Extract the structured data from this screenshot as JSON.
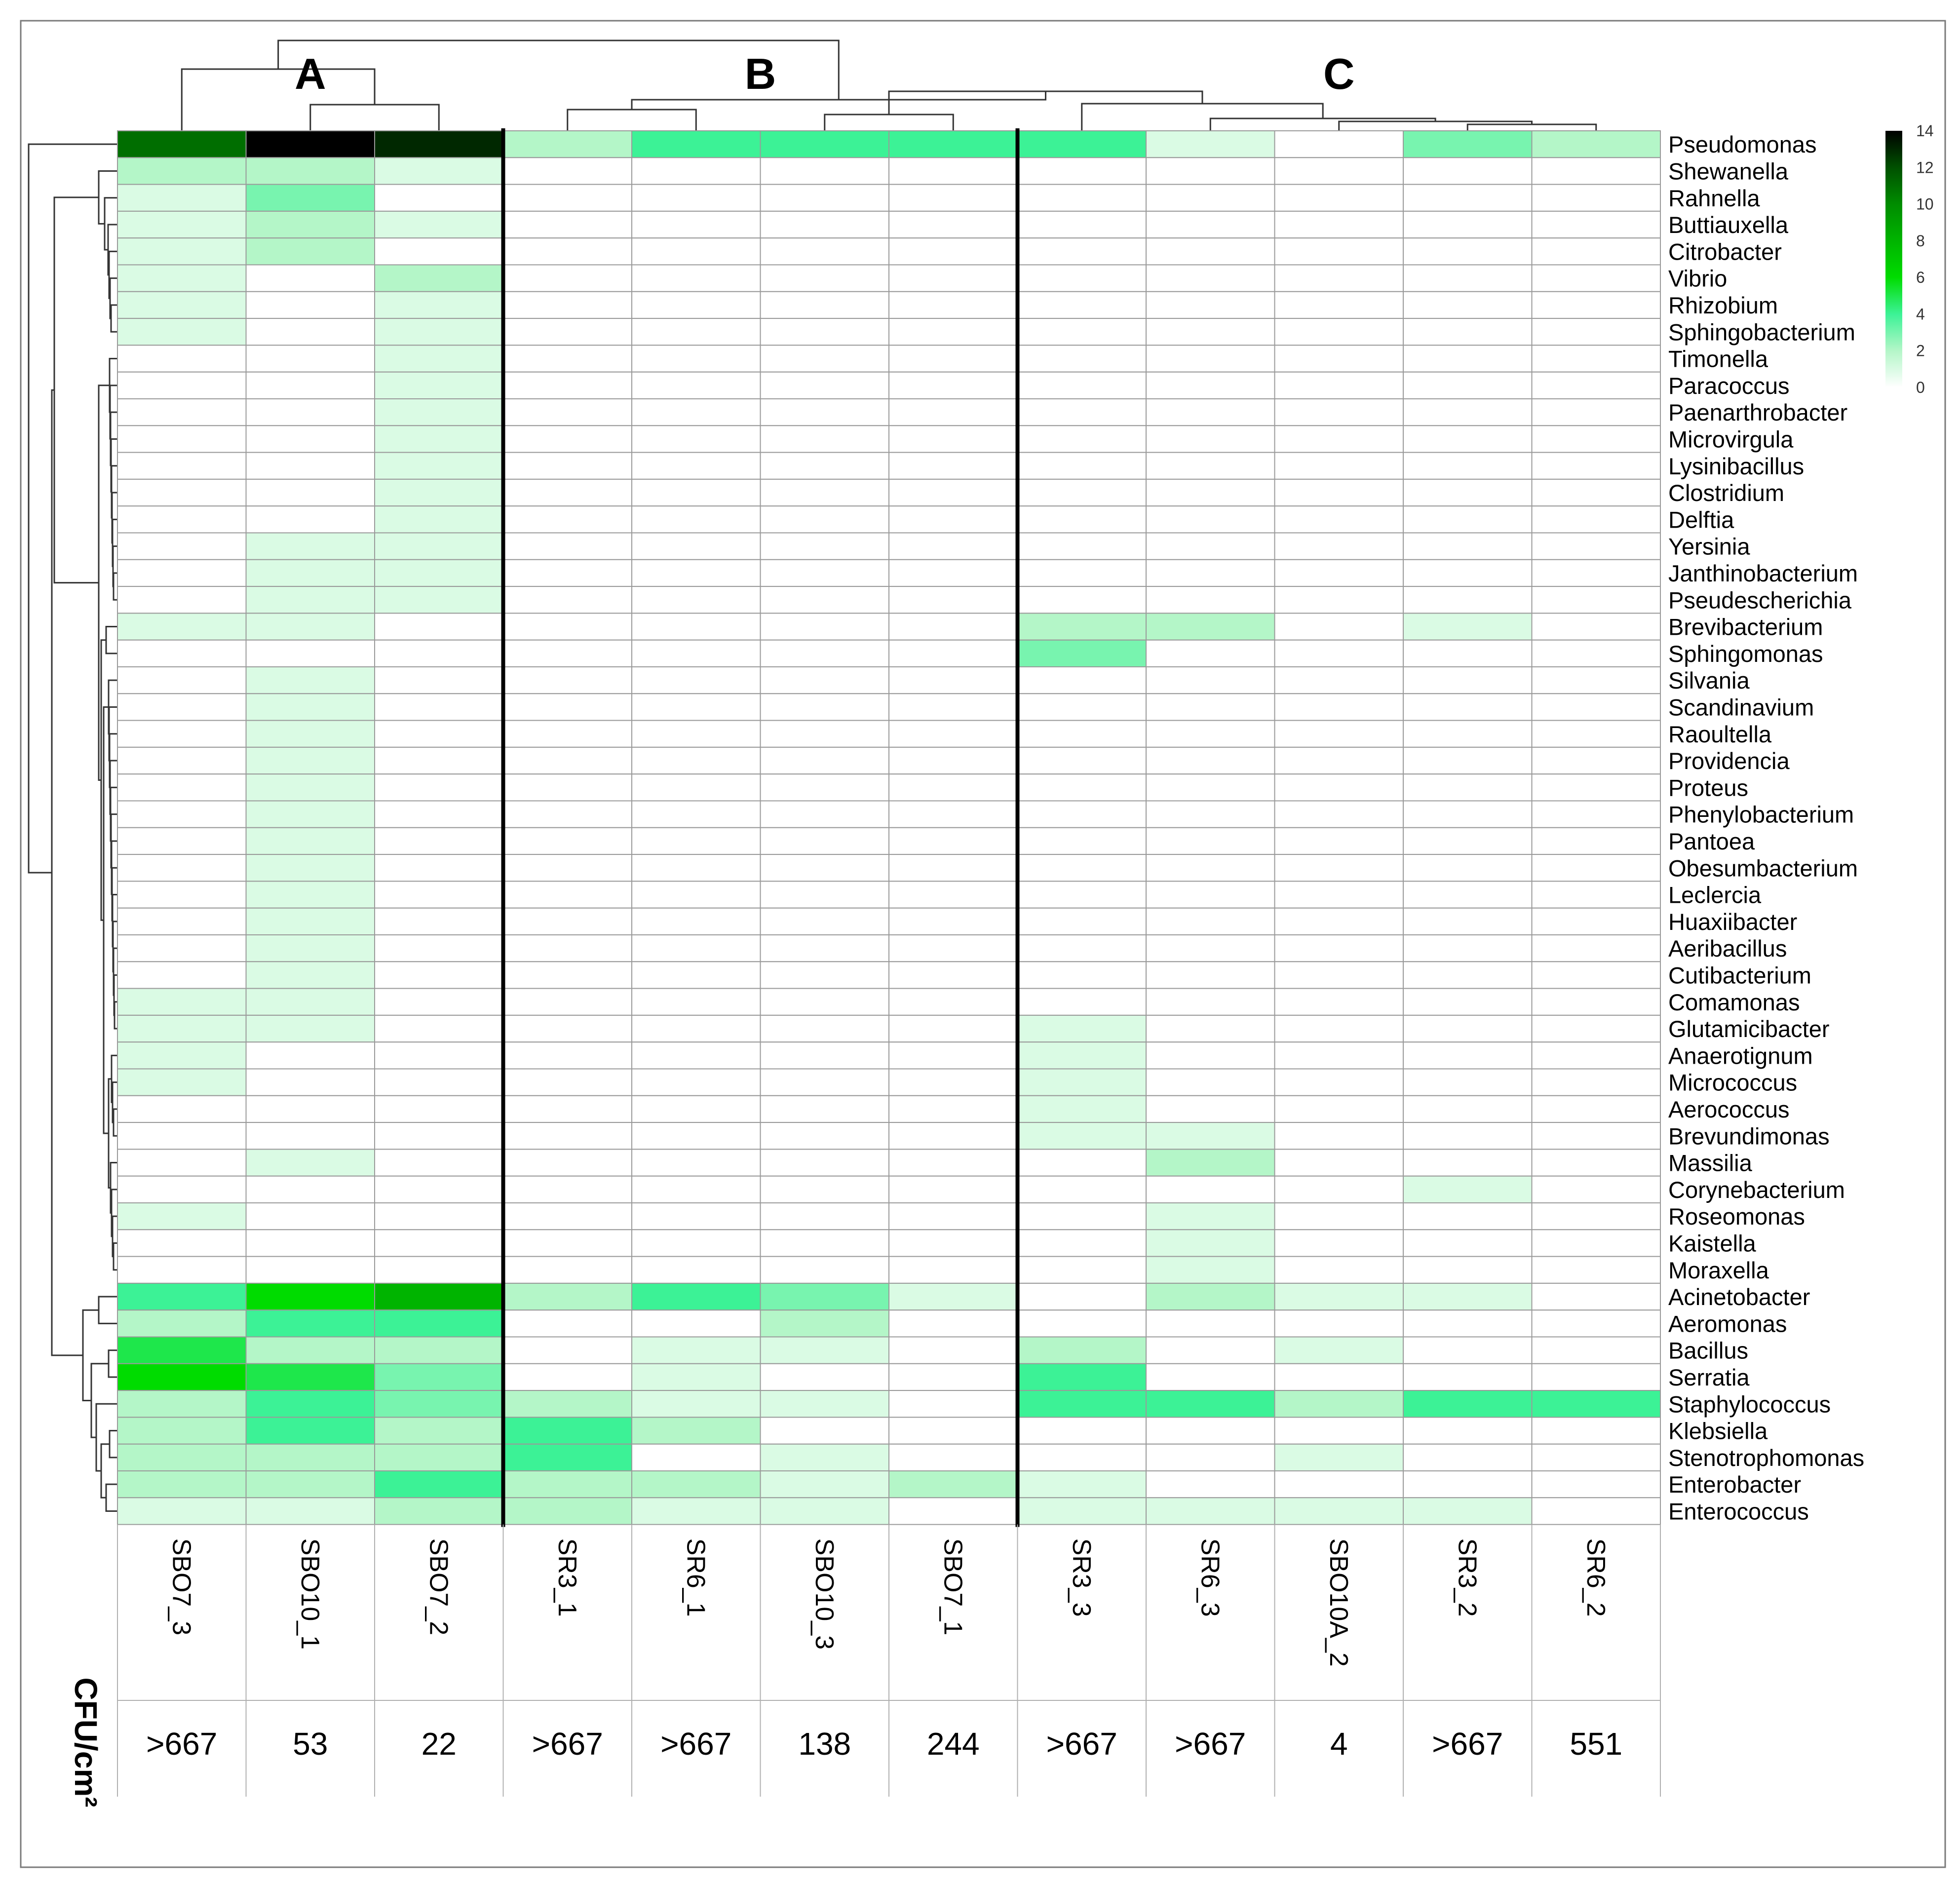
{
  "chart_data": {
    "type": "heatmap",
    "title": "",
    "xlabel": "",
    "ylabel": "",
    "clusters": [
      "A",
      "B",
      "C"
    ],
    "cluster_sizes": [
      3,
      4,
      5
    ],
    "columns": [
      "SBO7_3",
      "SBO10_1",
      "SBO7_2",
      "SR3_1",
      "SR6_1",
      "SBO10_3",
      "SBO7_1",
      "SR3_3",
      "SR6_3",
      "SBO10A_2",
      "SR3_2",
      "SR6_2"
    ],
    "cfu_label": "CFU/cm²",
    "cfu_values": [
      ">667",
      "53",
      "22",
      ">667",
      ">667",
      "138",
      "244",
      ">667",
      ">667",
      "4",
      ">667",
      "551"
    ],
    "rows": [
      "Pseudomonas",
      "Shewanella",
      "Rahnella",
      "Buttiauxella",
      "Citrobacter",
      "Vibrio",
      "Rhizobium",
      "Sphingobacterium",
      "Timonella",
      "Paracoccus",
      "Paenarthrobacter",
      "Microvirgula",
      "Lysinibacillus",
      "Clostridium",
      "Delftia",
      "Yersinia",
      "Janthinobacterium",
      "Pseudescherichia",
      "Brevibacterium",
      "Sphingomonas",
      "Silvania",
      "Scandinavium",
      "Raoultella",
      "Providencia",
      "Proteus",
      "Phenylobacterium",
      "Pantoea",
      "Obesumbacterium",
      "Leclercia",
      "Huaxiibacter",
      "Aeribacillus",
      "Cutibacterium",
      "Comamonas",
      "Glutamicibacter",
      "Anaerotignum",
      "Micrococcus",
      "Aerococcus",
      "Brevundimonas",
      "Massilia",
      "Corynebacterium",
      "Roseomonas",
      "Kaistella",
      "Moraxella",
      "Acinetobacter",
      "Aeromonas",
      "Bacillus",
      "Serratia",
      "Staphylococcus",
      "Klebsiella",
      "Stenotrophomonas",
      "Enterobacter",
      "Enterococcus"
    ],
    "values": [
      [
        11,
        14,
        13,
        2,
        4,
        4,
        4,
        4,
        1,
        0,
        3,
        2
      ],
      [
        2,
        2,
        1,
        0,
        0,
        0,
        0,
        0,
        0,
        0,
        0,
        0
      ],
      [
        1,
        3,
        0,
        0,
        0,
        0,
        0,
        0,
        0,
        0,
        0,
        0
      ],
      [
        1,
        2,
        1,
        0,
        0,
        0,
        0,
        0,
        0,
        0,
        0,
        0
      ],
      [
        1,
        2,
        0,
        0,
        0,
        0,
        0,
        0,
        0,
        0,
        0,
        0
      ],
      [
        1,
        0,
        2,
        0,
        0,
        0,
        0,
        0,
        0,
        0,
        0,
        0
      ],
      [
        1,
        0,
        1,
        0,
        0,
        0,
        0,
        0,
        0,
        0,
        0,
        0
      ],
      [
        1,
        0,
        1,
        0,
        0,
        0,
        0,
        0,
        0,
        0,
        0,
        0
      ],
      [
        0,
        0,
        1,
        0,
        0,
        0,
        0,
        0,
        0,
        0,
        0,
        0
      ],
      [
        0,
        0,
        1,
        0,
        0,
        0,
        0,
        0,
        0,
        0,
        0,
        0
      ],
      [
        0,
        0,
        1,
        0,
        0,
        0,
        0,
        0,
        0,
        0,
        0,
        0
      ],
      [
        0,
        0,
        1,
        0,
        0,
        0,
        0,
        0,
        0,
        0,
        0,
        0
      ],
      [
        0,
        0,
        1,
        0,
        0,
        0,
        0,
        0,
        0,
        0,
        0,
        0
      ],
      [
        0,
        0,
        1,
        0,
        0,
        0,
        0,
        0,
        0,
        0,
        0,
        0
      ],
      [
        0,
        0,
        1,
        0,
        0,
        0,
        0,
        0,
        0,
        0,
        0,
        0
      ],
      [
        0,
        1,
        1,
        0,
        0,
        0,
        0,
        0,
        0,
        0,
        0,
        0
      ],
      [
        0,
        1,
        1,
        0,
        0,
        0,
        0,
        0,
        0,
        0,
        0,
        0
      ],
      [
        0,
        1,
        1,
        0,
        0,
        0,
        0,
        0,
        0,
        0,
        0,
        0
      ],
      [
        1,
        1,
        0,
        0,
        0,
        0,
        0,
        2,
        2,
        0,
        1,
        0
      ],
      [
        0,
        0,
        0,
        0,
        0,
        0,
        0,
        3,
        0,
        0,
        0,
        0
      ],
      [
        0,
        1,
        0,
        0,
        0,
        0,
        0,
        0,
        0,
        0,
        0,
        0
      ],
      [
        0,
        1,
        0,
        0,
        0,
        0,
        0,
        0,
        0,
        0,
        0,
        0
      ],
      [
        0,
        1,
        0,
        0,
        0,
        0,
        0,
        0,
        0,
        0,
        0,
        0
      ],
      [
        0,
        1,
        0,
        0,
        0,
        0,
        0,
        0,
        0,
        0,
        0,
        0
      ],
      [
        0,
        1,
        0,
        0,
        0,
        0,
        0,
        0,
        0,
        0,
        0,
        0
      ],
      [
        0,
        1,
        0,
        0,
        0,
        0,
        0,
        0,
        0,
        0,
        0,
        0
      ],
      [
        0,
        1,
        0,
        0,
        0,
        0,
        0,
        0,
        0,
        0,
        0,
        0
      ],
      [
        0,
        1,
        0,
        0,
        0,
        0,
        0,
        0,
        0,
        0,
        0,
        0
      ],
      [
        0,
        1,
        0,
        0,
        0,
        0,
        0,
        0,
        0,
        0,
        0,
        0
      ],
      [
        0,
        1,
        0,
        0,
        0,
        0,
        0,
        0,
        0,
        0,
        0,
        0
      ],
      [
        0,
        1,
        0,
        0,
        0,
        0,
        0,
        0,
        0,
        0,
        0,
        0
      ],
      [
        0,
        1,
        0,
        0,
        0,
        0,
        0,
        0,
        0,
        0,
        0,
        0
      ],
      [
        1,
        1,
        0,
        0,
        0,
        0,
        0,
        0,
        0,
        0,
        0,
        0
      ],
      [
        1,
        1,
        0,
        0,
        0,
        0,
        0,
        1,
        0,
        0,
        0,
        0
      ],
      [
        1,
        0,
        0,
        0,
        0,
        0,
        0,
        1,
        0,
        0,
        0,
        0
      ],
      [
        1,
        0,
        0,
        0,
        0,
        0,
        0,
        1,
        0,
        0,
        0,
        0
      ],
      [
        0,
        0,
        0,
        0,
        0,
        0,
        0,
        1,
        0,
        0,
        0,
        0
      ],
      [
        0,
        0,
        0,
        0,
        0,
        0,
        0,
        1,
        1,
        0,
        0,
        0
      ],
      [
        0,
        1,
        0,
        0,
        0,
        0,
        0,
        0,
        2,
        0,
        0,
        0
      ],
      [
        0,
        0,
        0,
        0,
        0,
        0,
        0,
        0,
        0,
        0,
        1,
        0
      ],
      [
        1,
        0,
        0,
        0,
        0,
        0,
        0,
        0,
        1,
        0,
        0,
        0
      ],
      [
        0,
        0,
        0,
        0,
        0,
        0,
        0,
        0,
        1,
        0,
        0,
        0
      ],
      [
        0,
        0,
        0,
        0,
        0,
        0,
        0,
        0,
        1,
        0,
        0,
        0
      ],
      [
        4,
        6,
        8,
        2,
        4,
        3,
        1,
        0,
        2,
        1,
        1,
        0
      ],
      [
        2,
        4,
        4,
        0,
        0,
        2,
        0,
        0,
        0,
        0,
        0,
        0
      ],
      [
        5,
        2,
        2,
        0,
        1,
        1,
        0,
        2,
        0,
        1,
        0,
        0
      ],
      [
        6,
        5,
        3,
        0,
        1,
        0,
        0,
        4,
        0,
        0,
        0,
        0
      ],
      [
        2,
        4,
        3,
        2,
        1,
        1,
        0,
        4,
        4,
        2,
        4,
        4
      ],
      [
        2,
        4,
        2,
        4,
        2,
        0,
        0,
        0,
        0,
        0,
        0,
        0
      ],
      [
        2,
        2,
        2,
        4,
        0,
        1,
        0,
        0,
        0,
        1,
        0,
        0
      ],
      [
        2,
        2,
        4,
        2,
        2,
        1,
        2,
        1,
        0,
        0,
        0,
        0
      ],
      [
        1,
        1,
        2,
        2,
        1,
        1,
        0,
        1,
        1,
        1,
        1,
        0
      ]
    ],
    "color_scale": {
      "min": 0,
      "max": 14,
      "ticks": [
        0,
        2,
        4,
        6,
        8,
        10,
        12,
        14
      ],
      "stops": [
        "#ffffff",
        "#b4f6c8",
        "#3cf296",
        "#00dc00",
        "#00b400",
        "#008c00",
        "#005000",
        "#000000"
      ]
    },
    "grid": true,
    "legend": "top-right"
  }
}
